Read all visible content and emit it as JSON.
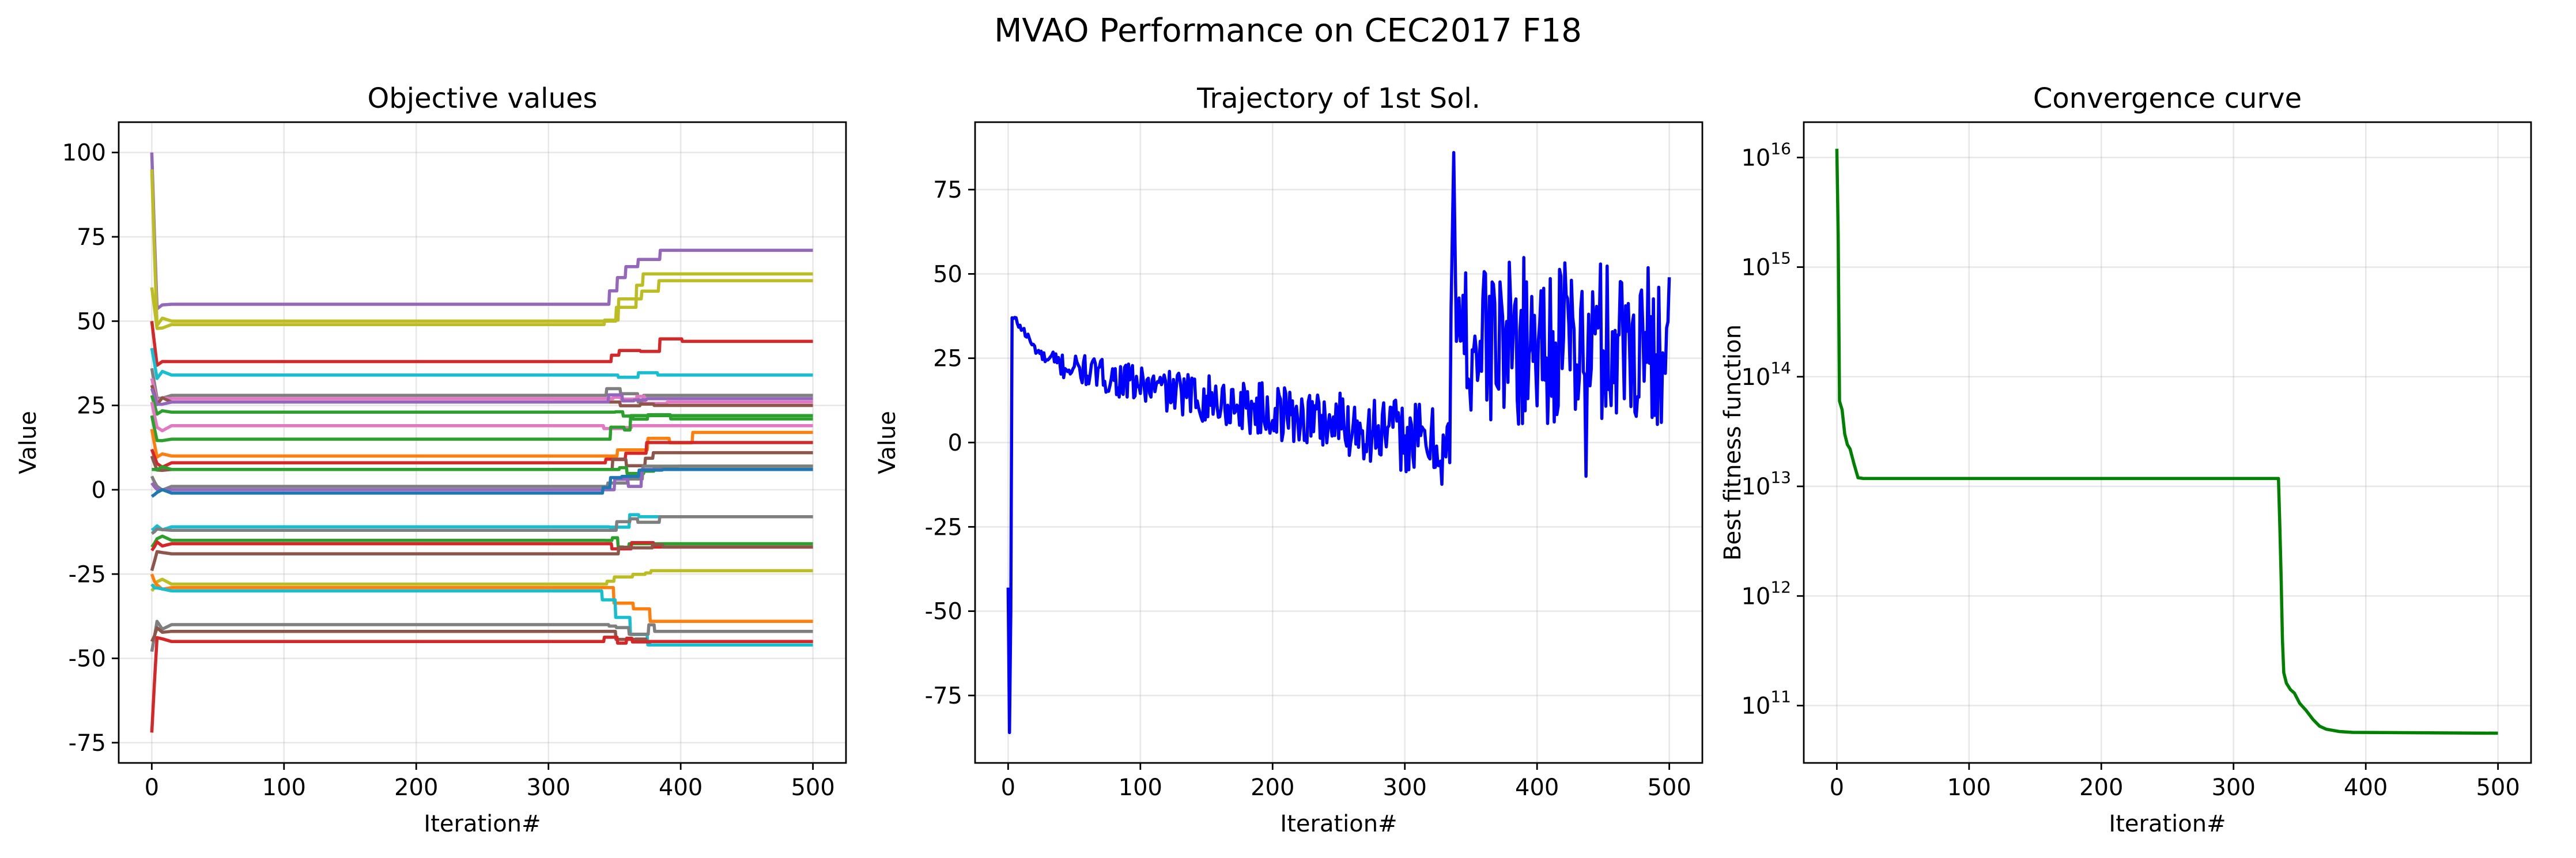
{
  "figure": {
    "title": "MVAO Performance on CEC2017 F18"
  },
  "chart_data": [
    {
      "type": "line",
      "title": "Objective values",
      "xlabel": "Iteration#",
      "ylabel": "Value",
      "xlim": [
        -25,
        525
      ],
      "ylim": [
        -81,
        109
      ],
      "xticks": [
        0,
        100,
        200,
        300,
        400,
        500
      ],
      "yticks": [
        -75,
        -50,
        -25,
        0,
        25,
        50,
        75,
        100
      ],
      "grid": true,
      "switch_iteration": 335,
      "series": [
        {
          "color": "#9467bd",
          "start": 100,
          "plateau": 55,
          "final": 71
        },
        {
          "color": "#bcbd22",
          "start": 95,
          "plateau": 50,
          "final": 64
        },
        {
          "color": "#bcbd22",
          "start": 60,
          "plateau": 49,
          "final": 62
        },
        {
          "color": "#d62728",
          "start": 50,
          "plateau": 38,
          "final": 44
        },
        {
          "color": "#17becf",
          "start": 42,
          "plateau": 34,
          "final": 34
        },
        {
          "color": "#7f7f7f",
          "start": 36,
          "plateau": 28,
          "final": 28
        },
        {
          "color": "#e377c2",
          "start": 33,
          "plateau": 27,
          "final": 26
        },
        {
          "color": "#8c564b",
          "start": 31,
          "plateau": 26,
          "final": 25
        },
        {
          "color": "#9467bd",
          "start": 30,
          "plateau": 26,
          "final": 27
        },
        {
          "color": "#2ca02c",
          "start": 28,
          "plateau": 23,
          "final": 21
        },
        {
          "color": "#e377c2",
          "start": 26,
          "plateau": 19,
          "final": 19
        },
        {
          "color": "#2ca02c",
          "start": 22,
          "plateau": 15,
          "final": 22
        },
        {
          "color": "#ff7f0e",
          "start": 18,
          "plateau": 10,
          "final": 17
        },
        {
          "color": "#d62728",
          "start": 12,
          "plateau": 8,
          "final": 14
        },
        {
          "color": "#8c564b",
          "start": 10,
          "plateau": 6,
          "final": 11
        },
        {
          "color": "#2ca02c",
          "start": 6,
          "plateau": 6,
          "final": 7
        },
        {
          "color": "#7f7f7f",
          "start": 4,
          "plateau": 1,
          "final": 7
        },
        {
          "color": "#9467bd",
          "start": 2,
          "plateau": 0,
          "final": 6
        },
        {
          "color": "#1f77b4",
          "start": -2,
          "plateau": -1,
          "final": 6
        },
        {
          "color": "#17becf",
          "start": -12,
          "plateau": -11,
          "final": -8
        },
        {
          "color": "#7f7f7f",
          "start": -13,
          "plateau": -12,
          "final": -8
        },
        {
          "color": "#2ca02c",
          "start": -17,
          "plateau": -15,
          "final": -16
        },
        {
          "color": "#d62728",
          "start": -18,
          "plateau": -16,
          "final": -17
        },
        {
          "color": "#8c564b",
          "start": -24,
          "plateau": -19,
          "final": -17
        },
        {
          "color": "#bcbd22",
          "start": -30,
          "plateau": -28,
          "final": -24
        },
        {
          "color": "#ff7f0e",
          "start": -25,
          "plateau": -29,
          "final": -39
        },
        {
          "color": "#17becf",
          "start": -28,
          "plateau": -30,
          "final": -46
        },
        {
          "color": "#7f7f7f",
          "start": -48,
          "plateau": -40,
          "final": -42
        },
        {
          "color": "#8c564b",
          "start": -45,
          "plateau": -42,
          "final": -45
        },
        {
          "color": "#d62728",
          "start": -72,
          "plateau": -45,
          "final": -45
        }
      ]
    },
    {
      "type": "line",
      "title": "Trajectory of 1st Sol.",
      "xlabel": "Iteration#",
      "ylabel": "Value",
      "xlim": [
        -25,
        525
      ],
      "ylim": [
        -95,
        95
      ],
      "xticks": [
        0,
        100,
        200,
        300,
        400,
        500
      ],
      "yticks": [
        -75,
        -50,
        -25,
        0,
        25,
        50,
        75
      ],
      "grid": true,
      "color": "#0000ff",
      "key_points": [
        {
          "x": 0,
          "y": -43
        },
        {
          "x": 1,
          "y": -86
        },
        {
          "x": 2,
          "y": -50
        },
        {
          "x": 3,
          "y": 37
        },
        {
          "x": 6,
          "y": 36
        },
        {
          "x": 12,
          "y": 33
        },
        {
          "x": 20,
          "y": 28
        },
        {
          "x": 30,
          "y": 24
        },
        {
          "x": 50,
          "y": 22
        },
        {
          "x": 100,
          "y": 17
        },
        {
          "x": 150,
          "y": 13
        },
        {
          "x": 200,
          "y": 9
        },
        {
          "x": 250,
          "y": 6
        },
        {
          "x": 300,
          "y": 2
        },
        {
          "x": 334,
          "y": -2
        },
        {
          "x": 335,
          "y": 40
        },
        {
          "x": 337,
          "y": 86
        },
        {
          "x": 339,
          "y": 30
        },
        {
          "x": 400,
          "y": 30
        },
        {
          "x": 437,
          "y": -10
        },
        {
          "x": 500,
          "y": 49
        }
      ]
    },
    {
      "type": "line",
      "title": "Convergence curve",
      "xlabel": "Iteration#",
      "ylabel": "Best fitness function",
      "xlim": [
        -25,
        525
      ],
      "yscale": "log",
      "ylim": [
        30000000000.0,
        2.1e+16
      ],
      "xticks": [
        0,
        100,
        200,
        300,
        400,
        500
      ],
      "yticks": [
        {
          "base": "10",
          "exp": "11",
          "value": 100000000000.0
        },
        {
          "base": "10",
          "exp": "12",
          "value": 1000000000000.0
        },
        {
          "base": "10",
          "exp": "13",
          "value": 10000000000000.0
        },
        {
          "base": "10",
          "exp": "14",
          "value": 100000000000000.0
        },
        {
          "base": "10",
          "exp": "15",
          "value": 1000000000000000.0
        },
        {
          "base": "10",
          "exp": "16",
          "value": 1e+16
        }
      ],
      "grid": true,
      "color": "#008000",
      "points": [
        {
          "x": 0,
          "y": 1.2e+16
        },
        {
          "x": 1,
          "y": 2000000000000000.0
        },
        {
          "x": 2,
          "y": 60000000000000.0
        },
        {
          "x": 4,
          "y": 50000000000000.0
        },
        {
          "x": 6,
          "y": 30000000000000.0
        },
        {
          "x": 8,
          "y": 24000000000000.0
        },
        {
          "x": 10,
          "y": 22000000000000.0
        },
        {
          "x": 13,
          "y": 16000000000000.0
        },
        {
          "x": 16,
          "y": 12000000000000.0
        },
        {
          "x": 20,
          "y": 11800000000000.0
        },
        {
          "x": 334,
          "y": 11800000000000.0
        },
        {
          "x": 335,
          "y": 4500000000000.0
        },
        {
          "x": 336,
          "y": 1500000000000.0
        },
        {
          "x": 337,
          "y": 400000000000.0
        },
        {
          "x": 338,
          "y": 200000000000.0
        },
        {
          "x": 340,
          "y": 160000000000.0
        },
        {
          "x": 343,
          "y": 140000000000.0
        },
        {
          "x": 346,
          "y": 130000000000.0
        },
        {
          "x": 350,
          "y": 105000000000.0
        },
        {
          "x": 355,
          "y": 90000000000.0
        },
        {
          "x": 360,
          "y": 75000000000.0
        },
        {
          "x": 365,
          "y": 65000000000.0
        },
        {
          "x": 370,
          "y": 61000000000.0
        },
        {
          "x": 380,
          "y": 58000000000.0
        },
        {
          "x": 390,
          "y": 57000000000.0
        },
        {
          "x": 500,
          "y": 56000000000.0
        }
      ]
    }
  ]
}
